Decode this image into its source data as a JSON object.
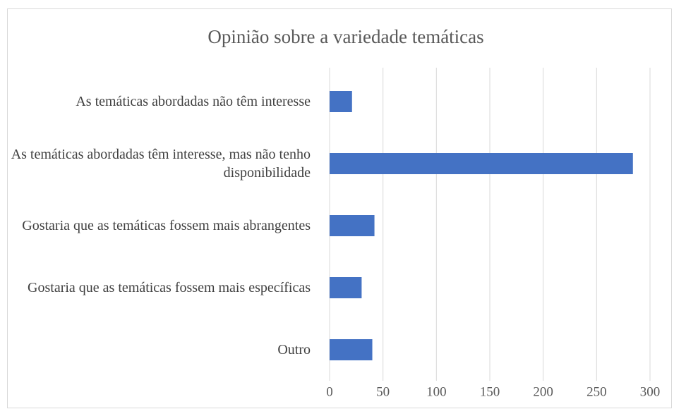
{
  "chart_data": {
    "type": "barh",
    "title": "Opinião sobre a variedade temáticas",
    "categories": [
      "As temáticas abordadas não têm interesse",
      "As temáticas abordadas têm interesse, mas não tenho disponibilidade",
      "Gostaria que as temáticas fossem mais abrangentes",
      "Gostaria que as temáticas fossem mais específicas",
      "Outro"
    ],
    "values": [
      21,
      284,
      42,
      30,
      40
    ],
    "color": "#4472c4",
    "xlim": [
      0,
      300
    ],
    "xticks": [
      0,
      50,
      100,
      150,
      200,
      250,
      300
    ],
    "grid": true
  }
}
